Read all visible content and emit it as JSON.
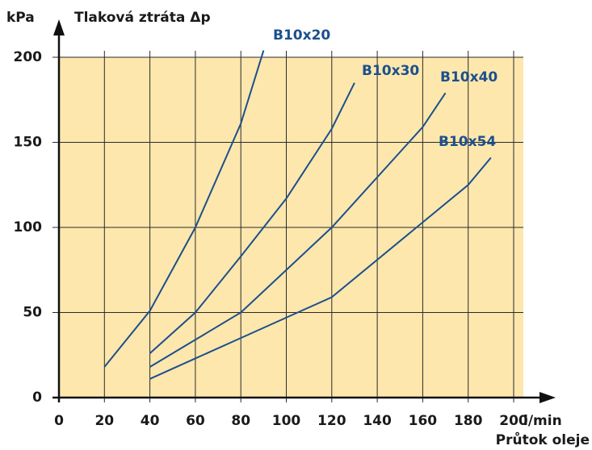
{
  "chart_data": {
    "type": "line",
    "y_unit": "kPa",
    "y_label": "Tlaková ztráta Δp",
    "x_unit": "l/min",
    "x_label": "Průtok oleje",
    "xlim": [
      0,
      200
    ],
    "xticks": [
      0,
      20,
      40,
      60,
      80,
      100,
      120,
      140,
      160,
      180,
      200
    ],
    "ylim": [
      0,
      200
    ],
    "yticks": [
      0,
      50,
      100,
      150,
      200
    ],
    "grid": true,
    "background": "#fde7ad",
    "grid_color": "#2a2a2a",
    "series": [
      {
        "name": "B10x20",
        "color": "#1c4f8c",
        "x": [
          20,
          40,
          60,
          80,
          90
        ],
        "values": [
          18,
          51,
          100,
          161,
          204
        ]
      },
      {
        "name": "B10x30",
        "color": "#1c4f8c",
        "x": [
          40,
          60,
          80,
          100,
          120,
          130
        ],
        "values": [
          26,
          50,
          83,
          117,
          158,
          185
        ]
      },
      {
        "name": "B10x40",
        "color": "#1c4f8c",
        "x": [
          40,
          60,
          80,
          120,
          160,
          170
        ],
        "values": [
          18,
          34,
          50,
          100,
          159,
          179
        ]
      },
      {
        "name": "B10x54",
        "color": "#1c4f8c",
        "x": [
          40,
          60,
          80,
          120,
          180,
          190
        ],
        "values": [
          11,
          23,
          35,
          59,
          125,
          141
        ]
      }
    ]
  }
}
